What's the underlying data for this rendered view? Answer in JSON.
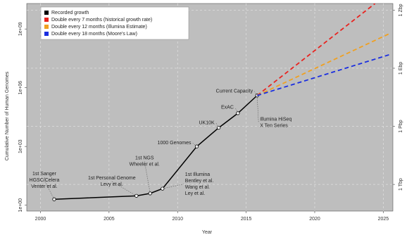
{
  "chart_data": {
    "type": "line",
    "x_label": "Year",
    "y_label": "Cumulative Number of Human Genomes",
    "xlim": [
      1999,
      2025.7
    ],
    "xticks": [
      2000,
      2005,
      2010,
      2015,
      2020,
      2025
    ],
    "log_scale": true,
    "ylim": [
      0.5,
      20000000000.0
    ],
    "yticks": [
      {
        "value": 1,
        "label": "1e+00"
      },
      {
        "value": 1000,
        "label": "1e+03"
      },
      {
        "value": 1000000,
        "label": "1e+06"
      },
      {
        "value": 1000000000,
        "label": "1e+09"
      }
    ],
    "y2lim": [
      42000000000.0,
      2.2e+21
    ],
    "y2ticks": [
      {
        "value": 1000000000000.0,
        "label": "1 Tbp"
      },
      {
        "value": 1000000000000000.0,
        "label": "1 Pbp"
      },
      {
        "value": 1e+18,
        "label": "1 Ebp"
      },
      {
        "value": 1e+21,
        "label": "1 Zbp"
      }
    ],
    "grid": true,
    "legend": "top-left",
    "series": [
      {
        "name": "Recorded growth",
        "color": "#000000",
        "x": [
          2001,
          2007,
          2008,
          2008.9,
          2011.4,
          2013,
          2014.4,
          2015.8
        ],
        "values": [
          2,
          3,
          4,
          7,
          1000,
          9000,
          50000,
          400000
        ]
      },
      {
        "name": "Double every 7 months (historical growth rate)",
        "color": "#e8231f",
        "x": [
          2015.8,
          2024.4
        ],
        "values": [
          400000,
          20000000000
        ]
      },
      {
        "name": "Double every 12 months (Illumina Estimate)",
        "color": "#f0a020",
        "x": [
          2015.8,
          2025.5
        ],
        "values": [
          400000,
          600000000
        ]
      },
      {
        "name": "Double every 18 months (Moore's Law)",
        "color": "#1a2ee0",
        "x": [
          2015.8,
          2025.5
        ],
        "values": [
          400000,
          50000000
        ]
      }
    ],
    "annotations": [
      [
        "1st Sanger",
        "HGSC/Celera",
        "Venter et al."
      ],
      [
        "1st Personal Genome",
        "Levy et al."
      ],
      [
        "1st NGS",
        "Wheeler et al."
      ],
      [
        "1st Illumina",
        "Bentley et al.",
        "Wang et al.",
        "Ley et al."
      ],
      [
        "1000 Genomes"
      ],
      [
        "UK10K"
      ],
      [
        "ExAC"
      ],
      [
        "Current Capacity"
      ],
      [
        "Illumina HiSeq",
        "X Ten Series"
      ]
    ]
  }
}
